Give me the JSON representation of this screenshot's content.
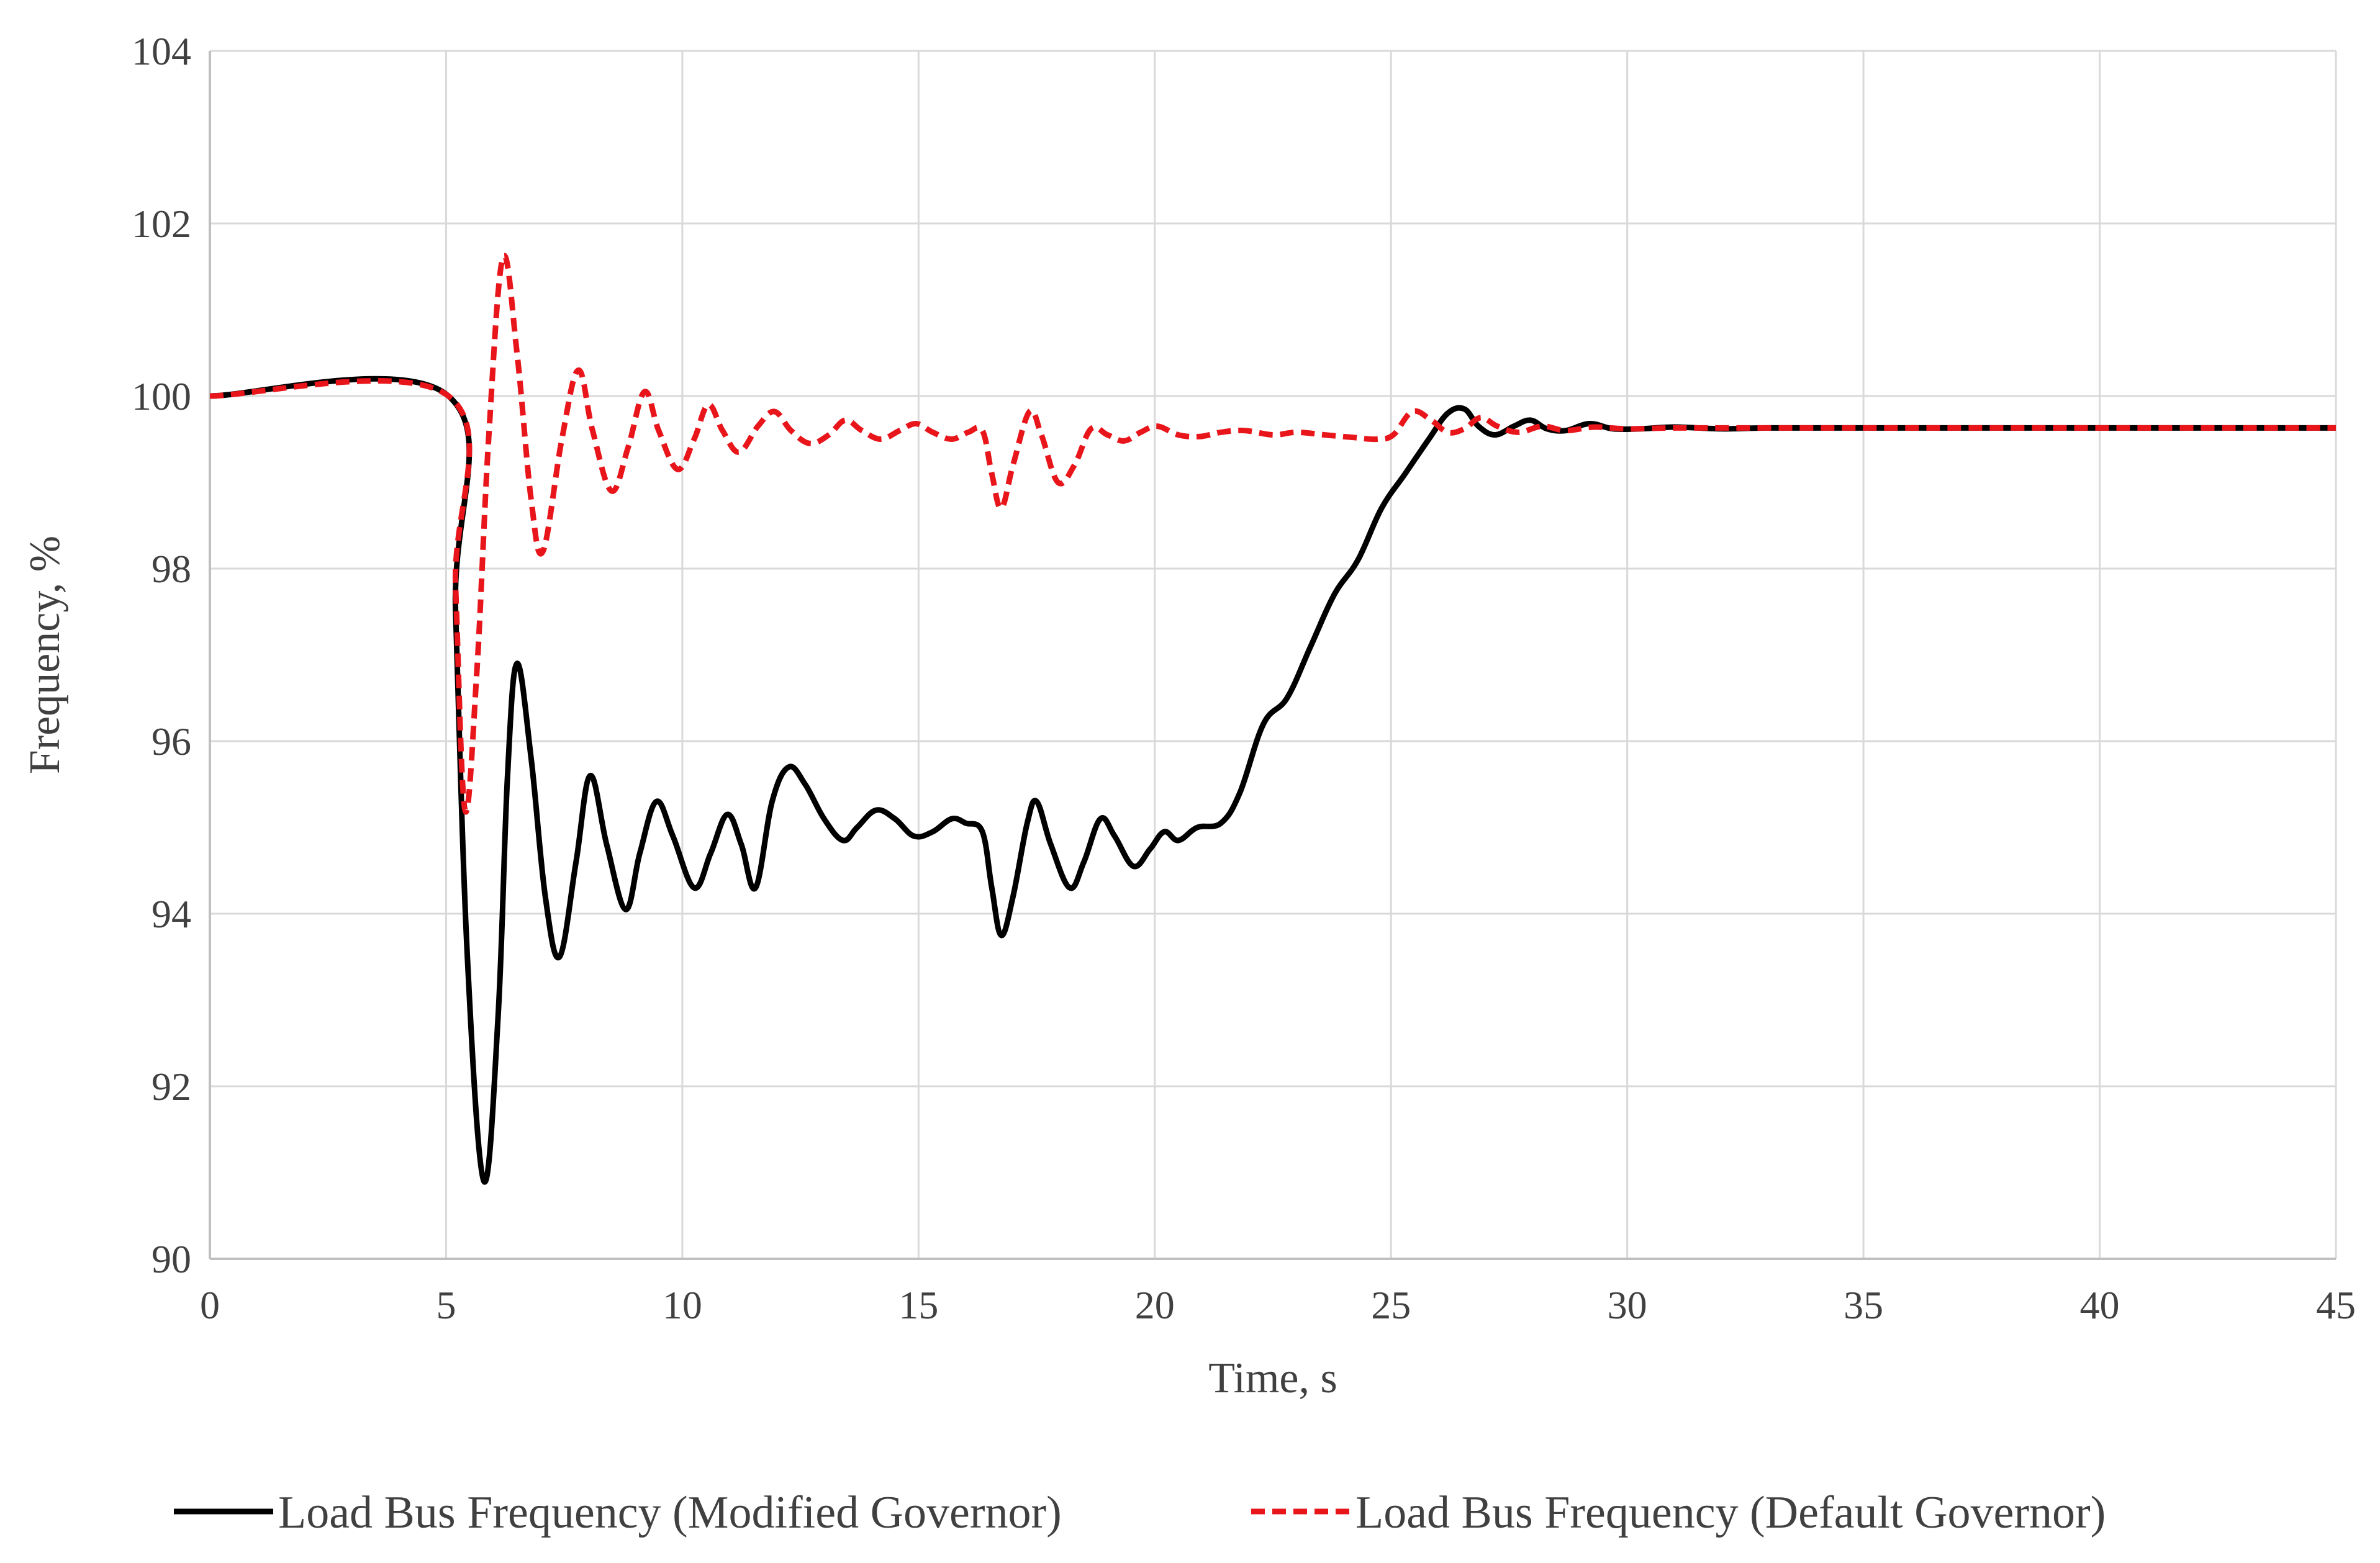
{
  "chart_data": {
    "type": "line",
    "title": "",
    "xlabel": "Time, s",
    "ylabel": "Frequency, %",
    "xlim": [
      0,
      45
    ],
    "ylim": [
      90,
      104
    ],
    "x_ticks": [
      0,
      5,
      10,
      15,
      20,
      25,
      30,
      35,
      40,
      45
    ],
    "y_ticks": [
      90,
      92,
      94,
      96,
      98,
      100,
      102,
      104
    ],
    "grid": true,
    "legend_position": "bottom",
    "series": [
      {
        "name": "Load Bus Frequency (Modified Governor)",
        "color": "#000000",
        "style": "solid",
        "points": [
          [
            0,
            100
          ],
          [
            5.05,
            100
          ],
          [
            5.2,
            97.5
          ],
          [
            5.45,
            93.5
          ],
          [
            5.8,
            90.9
          ],
          [
            6.1,
            92.8
          ],
          [
            6.3,
            95.6
          ],
          [
            6.5,
            96.9
          ],
          [
            6.8,
            95.8
          ],
          [
            7.1,
            94.2
          ],
          [
            7.4,
            93.5
          ],
          [
            7.75,
            94.6
          ],
          [
            8.05,
            95.6
          ],
          [
            8.4,
            94.8
          ],
          [
            8.8,
            94.05
          ],
          [
            9.1,
            94.7
          ],
          [
            9.45,
            95.3
          ],
          [
            9.8,
            94.9
          ],
          [
            10.25,
            94.3
          ],
          [
            10.6,
            94.7
          ],
          [
            10.95,
            95.15
          ],
          [
            11.25,
            94.8
          ],
          [
            11.55,
            94.3
          ],
          [
            11.9,
            95.3
          ],
          [
            12.25,
            95.7
          ],
          [
            12.6,
            95.5
          ],
          [
            13.0,
            95.1
          ],
          [
            13.4,
            94.85
          ],
          [
            13.7,
            95.0
          ],
          [
            14.1,
            95.2
          ],
          [
            14.5,
            95.1
          ],
          [
            14.9,
            94.9
          ],
          [
            15.3,
            94.95
          ],
          [
            15.7,
            95.1
          ],
          [
            16.0,
            95.05
          ],
          [
            16.35,
            94.95
          ],
          [
            16.55,
            94.3
          ],
          [
            16.75,
            93.75
          ],
          [
            17.0,
            94.2
          ],
          [
            17.3,
            95.05
          ],
          [
            17.5,
            95.3
          ],
          [
            17.8,
            94.8
          ],
          [
            18.2,
            94.3
          ],
          [
            18.5,
            94.6
          ],
          [
            18.85,
            95.1
          ],
          [
            19.15,
            94.9
          ],
          [
            19.55,
            94.55
          ],
          [
            19.9,
            94.75
          ],
          [
            20.2,
            94.95
          ],
          [
            20.5,
            94.85
          ],
          [
            20.9,
            95.0
          ],
          [
            21.4,
            95.05
          ],
          [
            21.8,
            95.4
          ],
          [
            22.3,
            96.2
          ],
          [
            22.8,
            96.5
          ],
          [
            23.3,
            97.1
          ],
          [
            23.8,
            97.7
          ],
          [
            24.3,
            98.1
          ],
          [
            24.8,
            98.7
          ],
          [
            25.3,
            99.1
          ],
          [
            25.8,
            99.5
          ],
          [
            26.2,
            99.8
          ],
          [
            26.55,
            99.85
          ],
          [
            26.85,
            99.65
          ],
          [
            27.2,
            99.55
          ],
          [
            27.6,
            99.65
          ],
          [
            27.95,
            99.72
          ],
          [
            28.3,
            99.62
          ],
          [
            28.7,
            99.6
          ],
          [
            29.2,
            99.68
          ],
          [
            29.7,
            99.62
          ],
          [
            30.3,
            99.62
          ],
          [
            31.0,
            99.64
          ],
          [
            32.0,
            99.62
          ],
          [
            33.0,
            99.63
          ],
          [
            35.0,
            99.63
          ],
          [
            40.0,
            99.63
          ],
          [
            45.0,
            99.63
          ]
        ]
      },
      {
        "name": "Load Bus Frequency (Default Governor)",
        "color": "#e8151b",
        "style": "dashed",
        "points": [
          [
            0,
            100
          ],
          [
            5.05,
            100
          ],
          [
            5.2,
            97.8
          ],
          [
            5.4,
            95.2
          ],
          [
            5.65,
            96.8
          ],
          [
            5.9,
            99.5
          ],
          [
            6.2,
            101.6
          ],
          [
            6.5,
            100.5
          ],
          [
            6.8,
            98.8
          ],
          [
            7.05,
            98.2
          ],
          [
            7.45,
            99.5
          ],
          [
            7.8,
            100.3
          ],
          [
            8.1,
            99.6
          ],
          [
            8.5,
            98.9
          ],
          [
            8.85,
            99.4
          ],
          [
            9.2,
            100.05
          ],
          [
            9.5,
            99.6
          ],
          [
            9.9,
            99.15
          ],
          [
            10.25,
            99.5
          ],
          [
            10.55,
            99.9
          ],
          [
            10.85,
            99.6
          ],
          [
            11.2,
            99.35
          ],
          [
            11.6,
            99.65
          ],
          [
            11.95,
            99.82
          ],
          [
            12.3,
            99.6
          ],
          [
            12.7,
            99.45
          ],
          [
            13.1,
            99.55
          ],
          [
            13.45,
            99.72
          ],
          [
            13.8,
            99.6
          ],
          [
            14.2,
            99.5
          ],
          [
            14.6,
            99.6
          ],
          [
            14.95,
            99.68
          ],
          [
            15.3,
            99.58
          ],
          [
            15.7,
            99.5
          ],
          [
            16.05,
            99.58
          ],
          [
            16.35,
            99.6
          ],
          [
            16.55,
            99.1
          ],
          [
            16.75,
            98.7
          ],
          [
            17.0,
            99.2
          ],
          [
            17.35,
            99.82
          ],
          [
            17.6,
            99.55
          ],
          [
            17.95,
            99.0
          ],
          [
            18.3,
            99.2
          ],
          [
            18.65,
            99.62
          ],
          [
            19.0,
            99.55
          ],
          [
            19.35,
            99.48
          ],
          [
            19.7,
            99.58
          ],
          [
            20.05,
            99.65
          ],
          [
            20.5,
            99.55
          ],
          [
            20.95,
            99.53
          ],
          [
            21.4,
            99.58
          ],
          [
            21.9,
            99.6
          ],
          [
            22.5,
            99.55
          ],
          [
            23.0,
            99.58
          ],
          [
            23.6,
            99.55
          ],
          [
            24.2,
            99.52
          ],
          [
            24.7,
            99.5
          ],
          [
            25.05,
            99.55
          ],
          [
            25.45,
            99.82
          ],
          [
            25.85,
            99.72
          ],
          [
            26.2,
            99.58
          ],
          [
            26.55,
            99.62
          ],
          [
            26.9,
            99.75
          ],
          [
            27.25,
            99.65
          ],
          [
            27.7,
            99.58
          ],
          [
            28.2,
            99.65
          ],
          [
            28.7,
            99.6
          ],
          [
            29.3,
            99.64
          ],
          [
            30.0,
            99.62
          ],
          [
            31.0,
            99.63
          ],
          [
            33.0,
            99.63
          ],
          [
            35.0,
            99.63
          ],
          [
            40.0,
            99.63
          ],
          [
            45.0,
            99.63
          ]
        ]
      }
    ]
  }
}
